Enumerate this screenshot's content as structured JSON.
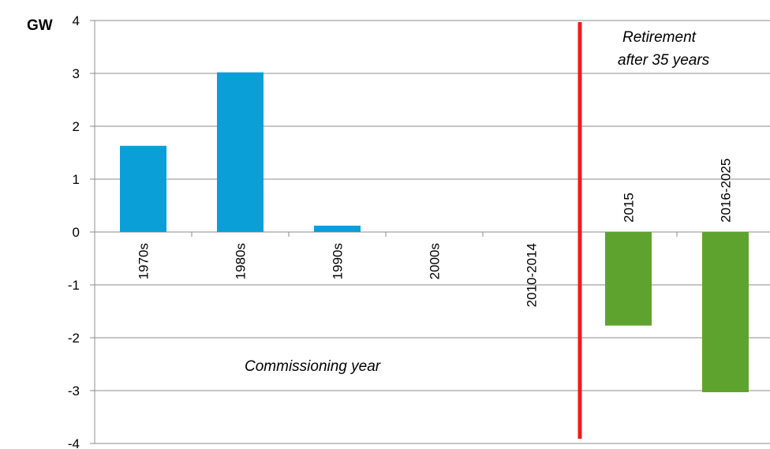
{
  "chart_data": {
    "type": "bar",
    "ylabel": "GW",
    "ylim": [
      -4,
      4
    ],
    "yticks": [
      4,
      3,
      2,
      1,
      0,
      -1,
      -2,
      -3,
      -4
    ],
    "categories": [
      "1970s",
      "1980s",
      "1990s",
      "2000s",
      "2010-2014",
      "2015",
      "2016-2025"
    ],
    "values": [
      1.63,
      3.02,
      0.12,
      0,
      0,
      -1.77,
      -3.03
    ],
    "bar_colors": [
      "#0b9fd8",
      "#0b9fd8",
      "#0b9fd8",
      "#0b9fd8",
      "#0b9fd8",
      "#5ea32e",
      "#5ea32e"
    ],
    "divider_color": "#ee1c1c",
    "annotations": {
      "commissioning": "Commissioning year",
      "retirement_line1": "Retirement",
      "retirement_line2": "after 35 years"
    },
    "grid": "horizontal"
  }
}
